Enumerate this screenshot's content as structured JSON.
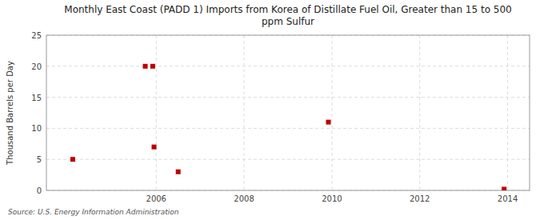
{
  "chart_data": {
    "type": "scatter",
    "title": "Monthly East Coast (PADD 1) Imports from Korea of Distillate Fuel Oil, Greater than 15 to 500\nppm Sulfur",
    "y_label": "Thousand Barrels per Day",
    "source": "Source: U.S. Energy Information Administration",
    "x": [
      2004.1,
      2005.75,
      2005.92,
      2005.95,
      2006.5,
      2009.92,
      2013.92
    ],
    "values": [
      5,
      20,
      20,
      7,
      3,
      11,
      0.2
    ],
    "color": "#bb0000",
    "marker": "square",
    "xlim": [
      2003.5,
      2014.5
    ],
    "ylim": [
      0,
      25
    ],
    "xticks": [
      2006,
      2008,
      2010,
      2012,
      2014
    ],
    "yticks": [
      0,
      5,
      10,
      15,
      20,
      25
    ],
    "grid": true
  }
}
